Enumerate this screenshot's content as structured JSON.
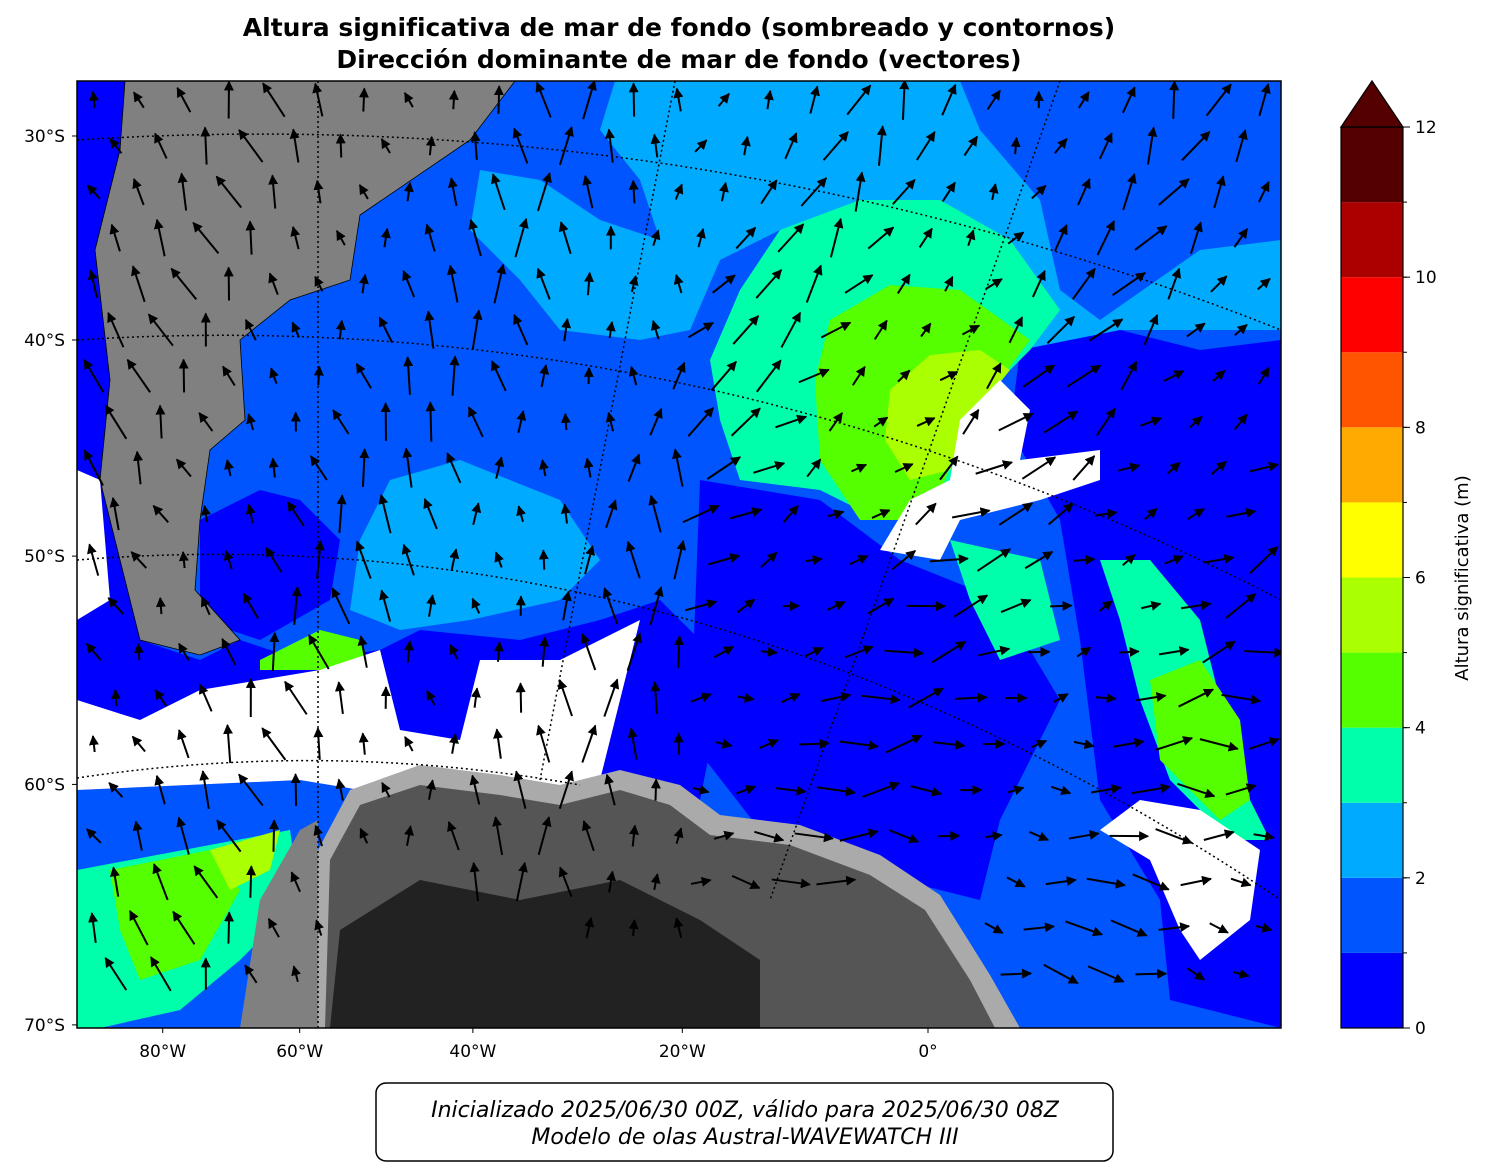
{
  "title": [
    "Altura significativa de mar de fondo (sombreado y contornos)",
    "Dirección dominante de mar de fondo (vectores)"
  ],
  "map": {
    "lat_ticks": [
      {
        "value": -30,
        "label": "30°S"
      },
      {
        "value": -40,
        "label": "40°S"
      },
      {
        "value": -50,
        "label": "50°S"
      },
      {
        "value": -60,
        "label": "60°S"
      },
      {
        "value": -70,
        "label": "70°S"
      }
    ],
    "lon_ticks": [
      {
        "value": -80,
        "label": "80°W"
      },
      {
        "value": -60,
        "label": "60°W"
      },
      {
        "value": -40,
        "label": "40°W"
      },
      {
        "value": -20,
        "label": "20°W"
      },
      {
        "value": 0,
        "label": "0°"
      }
    ]
  },
  "colorbar": {
    "levels": [
      0,
      1,
      2,
      3,
      4,
      5,
      6,
      7,
      8,
      9,
      10,
      11,
      12
    ],
    "colors": [
      "#0000ff",
      "#0055ff",
      "#00aaff",
      "#00ffaa",
      "#55ff00",
      "#aaff00",
      "#ffff00",
      "#ffaa00",
      "#ff5500",
      "#ff0000",
      "#aa0000",
      "#550000"
    ],
    "extend_color": "#550000",
    "ticks": [
      0,
      2,
      4,
      6,
      8,
      10,
      12
    ],
    "label": "Altura significativa (m)"
  },
  "footer": [
    "Inicializado 2025/06/30 00Z, válido para 2025/06/30 08Z",
    "Modelo de olas Austral-WAVEWATCH III"
  ]
}
